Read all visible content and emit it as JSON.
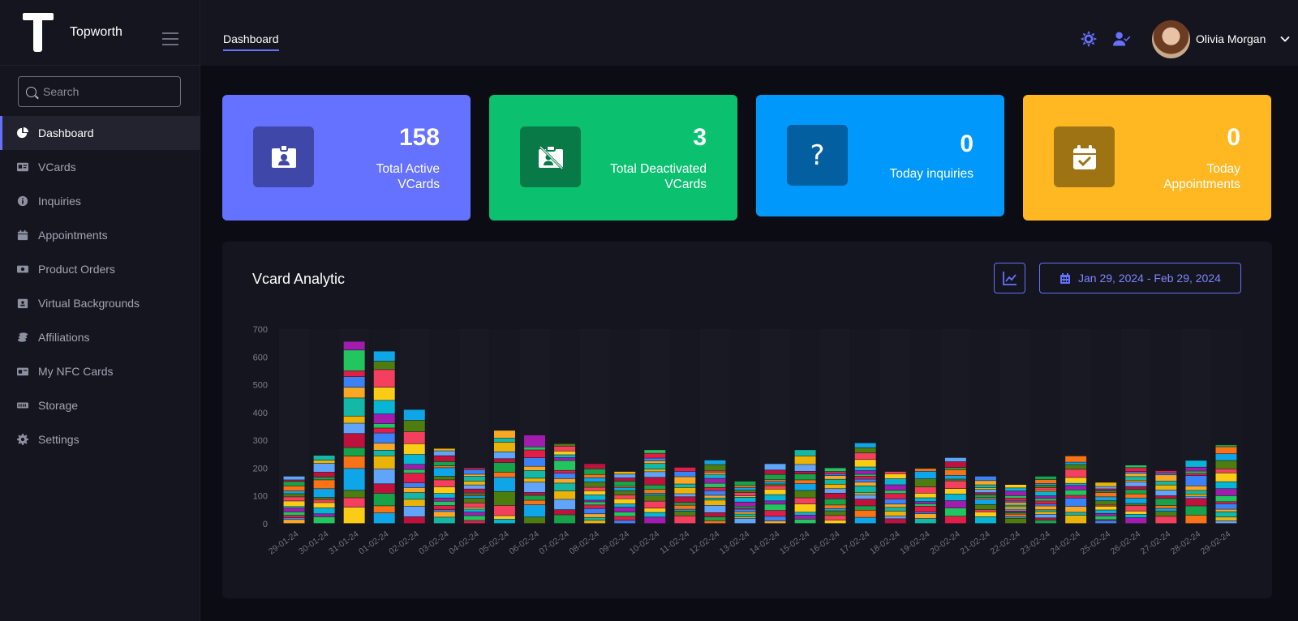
{
  "brand": {
    "name": "Topworth"
  },
  "search": {
    "placeholder": "Search"
  },
  "sidebar": {
    "items": [
      {
        "label": "Dashboard",
        "icon": "pie-chart-icon",
        "active": true
      },
      {
        "label": "VCards",
        "icon": "id-card-icon"
      },
      {
        "label": "Inquiries",
        "icon": "info-circle-icon"
      },
      {
        "label": "Appointments",
        "icon": "calendar-icon"
      },
      {
        "label": "Product Orders",
        "icon": "product-orders-icon"
      },
      {
        "label": "Virtual Backgrounds",
        "icon": "virtual-backgrounds-icon"
      },
      {
        "label": "Affiliations",
        "icon": "coins-icon"
      },
      {
        "label": "My NFC Cards",
        "icon": "nfc-card-icon"
      },
      {
        "label": "Storage",
        "icon": "storage-icon"
      },
      {
        "label": "Settings",
        "icon": "gear-icon"
      }
    ]
  },
  "header": {
    "tab": "Dashboard",
    "user_name": "Olivia Morgan"
  },
  "stats": [
    {
      "value": "158",
      "label_line1": "Total Active",
      "label_line2": "VCards",
      "color": "#6571ff",
      "icon_bg": "#3f47a8",
      "icon": "id-badge-icon"
    },
    {
      "value": "3",
      "label_line1": "Total Deactivated",
      "label_line2": "VCards",
      "color": "#0bc170",
      "icon_bg": "#087a48",
      "icon": "id-badge-slash-icon"
    },
    {
      "value": "0",
      "label_line1": "Today inquiries",
      "label_line2": "",
      "color": "#0099fb",
      "icon_bg": "#035fa0",
      "icon": "question-mark-icon"
    },
    {
      "value": "0",
      "label_line1": "Today",
      "label_line2": "Appointments",
      "color": "#ffb822",
      "icon_bg": "#9e7314",
      "icon": "calendar-check-icon"
    }
  ],
  "analytics": {
    "title": "Vcard Analytic",
    "date_range": "Jan 29, 2024 - Feb 29, 2024"
  },
  "chart_data": {
    "type": "bar",
    "stacked": true,
    "categories": [
      "29-01-24",
      "30-01-24",
      "31-01-24",
      "01-02-24",
      "02-02-24",
      "03-02-24",
      "04-02-24",
      "05-02-24",
      "06-02-24",
      "07-02-24",
      "08-02-24",
      "09-02-24",
      "10-02-24",
      "11-02-24",
      "12-02-24",
      "13-02-24",
      "14-02-24",
      "15-02-24",
      "16-02-24",
      "17-02-24",
      "18-02-24",
      "19-02-24",
      "20-02-24",
      "21-02-24",
      "22-02-24",
      "23-02-24",
      "24-02-24",
      "25-02-24",
      "26-02-24",
      "27-02-24",
      "28-02-24",
      "29-02-24"
    ],
    "totals": [
      170,
      245,
      655,
      620,
      410,
      270,
      200,
      335,
      318,
      287,
      215,
      187,
      265,
      202,
      228,
      152,
      215,
      265,
      200,
      290,
      187,
      198,
      237,
      170,
      140,
      170,
      243,
      148,
      210,
      190,
      227,
      283
    ],
    "yticks": [
      0,
      100,
      200,
      300,
      400,
      500,
      600,
      700
    ],
    "ylim": [
      0,
      700
    ],
    "palette": [
      "#f9a825",
      "#3b82f6",
      "#e11d48",
      "#22c55e",
      "#a21caf",
      "#06b6d4",
      "#facc15",
      "#f43f5e",
      "#4d7c0f",
      "#0ea5e9",
      "#f97316",
      "#16a34a",
      "#be123c",
      "#60a5fa",
      "#eab308",
      "#14b8a6"
    ]
  }
}
